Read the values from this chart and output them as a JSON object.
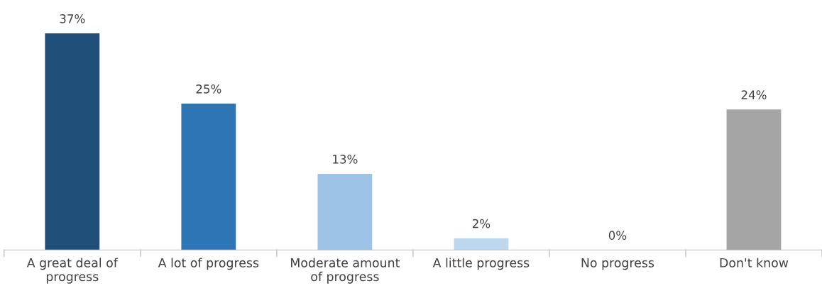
{
  "chart_data": {
    "type": "bar",
    "categories": [
      "A great deal of\nprogress",
      "A lot of progress",
      "Moderate amount\nof progress",
      "A little progress",
      "No progress",
      "Don't know"
    ],
    "values": [
      37,
      25,
      13,
      2,
      0,
      24
    ],
    "colors": [
      "#1f4e79",
      "#2e75b6",
      "#9dc3e6",
      "#bdd7ee",
      "#9dc3e6",
      "#a5a5a5"
    ],
    "value_labels": [
      "37%",
      "25%",
      "13%",
      "2%",
      "0%",
      "24%"
    ],
    "grid": false,
    "legend": false
  }
}
